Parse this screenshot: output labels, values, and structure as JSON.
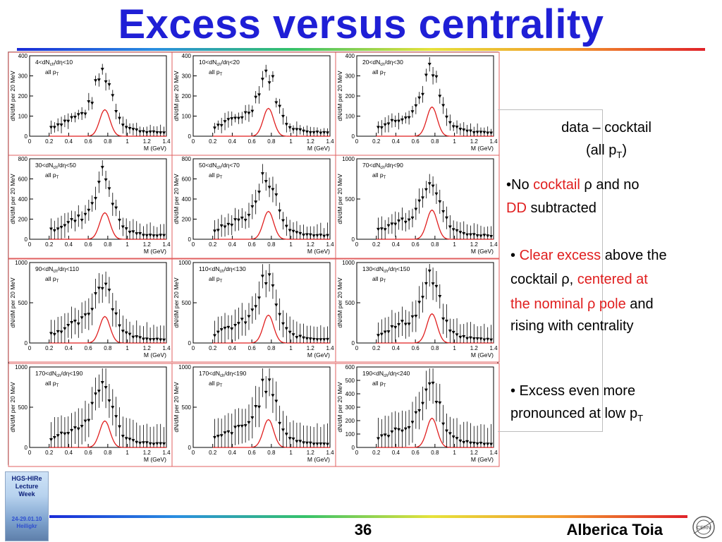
{
  "title": "Excess versus centrality",
  "panels": [
    {
      "label": "4<dN",
      "label2": "/dη<10",
      "sub": "all p",
      "ymax": 400,
      "yticks": [
        "100",
        "200",
        "300",
        "400"
      ]
    },
    {
      "label": "10<dN",
      "label2": "/dη<20",
      "sub": "all p",
      "ymax": 400,
      "yticks": [
        "100",
        "200",
        "300",
        "400"
      ]
    },
    {
      "label": "20<dN",
      "label2": "/dη<30",
      "sub": "all p",
      "ymax": 400,
      "yticks": [
        "100",
        "200",
        "300",
        "400"
      ]
    },
    {
      "label": "30<dN",
      "label2": "/dη<50",
      "sub": "all p",
      "ymax": 800,
      "yticks": [
        "200",
        "400",
        "600",
        "800"
      ]
    },
    {
      "label": "50<dN",
      "label2": "/dη<70",
      "sub": "all p",
      "ymax": 800,
      "yticks": [
        "200",
        "400",
        "600",
        "800"
      ]
    },
    {
      "label": "70<dN",
      "label2": "/dη<90",
      "sub": "all p",
      "ymax": 1000,
      "yticks": [
        "500",
        "1000"
      ]
    },
    {
      "label": "90<dN",
      "label2": "/dη<110",
      "sub": "all p",
      "ymax": 1000,
      "yticks": [
        "500",
        "1000"
      ]
    },
    {
      "label": "110<dN",
      "label2": "/dη<130",
      "sub": "all p",
      "ymax": 1000,
      "yticks": [
        "500",
        "1000"
      ]
    },
    {
      "label": "130<dN",
      "label2": "/dη<150",
      "sub": "all p",
      "ymax": 1000,
      "yticks": [
        "500",
        "1000"
      ]
    },
    {
      "label": "170<dN",
      "label2": "/dη<190",
      "sub": "all p",
      "ymax": 1000,
      "yticks": [
        "500",
        "1000"
      ]
    },
    {
      "label": "170<dN",
      "label2": "/dη<190",
      "sub": "all p",
      "ymax": 1000,
      "yticks": [
        "500",
        "1000"
      ]
    },
    {
      "label": "190<dN",
      "label2": "/dη<240",
      "sub": "all p",
      "ymax": 600,
      "yticks": [
        "100",
        "200",
        "300",
        "400",
        "500",
        "600"
      ]
    }
  ],
  "axis": {
    "xlabel": "M (GeV)",
    "ylabel": "dN/dM per 20 MeV",
    "xticks": [
      "0",
      "0.2",
      "0.4",
      "0.6",
      "0.8",
      "1",
      "1.2",
      "1.4"
    ],
    "subscript_ch": "ch",
    "subscript_T": "T"
  },
  "text": {
    "heading_line1": "data – cocktail",
    "heading_line2_pre": "(all p",
    "heading_line2_sub": "T",
    "heading_line2_post": ")",
    "b1_bullet": "•No ",
    "b1_red1": "cocktail",
    "b1_rho": " ρ",
    "b1_rest": " and no",
    "b1_red2": "DD",
    "b1_rest2": " subtracted",
    "b2_bullet": "• ",
    "b2_red1": "Clear excess",
    "b2_rest1": " above the",
    "b2_rest2": "cocktail ρ, ",
    "b2_red2": "centered at",
    "b2_red3": "the nominal ρ pole",
    "b2_rest3": " and",
    "b2_rest4": "rising with centrality",
    "b3_line1": "• Excess even more",
    "b3_line2_pre": "pronounced at low  p",
    "b3_line2_sub": "T"
  },
  "footer": {
    "logo_text": [
      "HGS-HIRe",
      "Lecture",
      "Week"
    ],
    "logo_date": [
      "24-29.01.10",
      "Heiligkr"
    ],
    "page_number": "36",
    "author": "Alberica Toia",
    "cern_label": "CERN"
  },
  "colors": {
    "title": "#1f1fd6",
    "highlight": "#e01e1e",
    "cocktail_curve": "#e01e1e",
    "panel_border": "#e06060"
  }
}
